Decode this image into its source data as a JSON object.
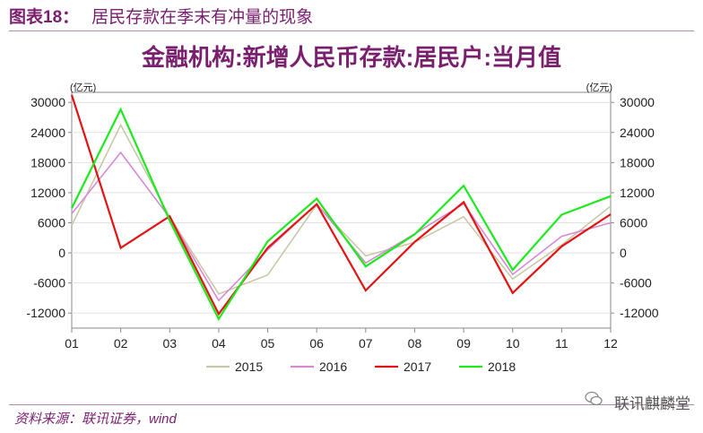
{
  "figure": {
    "label": "图表18：",
    "caption": "居民存款在季末有冲量的现象"
  },
  "source_note": "资料来源：联讯证券，wind",
  "watermark": "联讯麒麟堂",
  "chart_data": {
    "type": "line",
    "title": "金融机构:新增人民币存款:居民户:当月值",
    "unit_left": "(亿元)",
    "unit_right": "(亿元)",
    "categories": [
      "01",
      "02",
      "03",
      "04",
      "05",
      "06",
      "07",
      "08",
      "09",
      "10",
      "11",
      "12"
    ],
    "ylim": [
      -15000,
      32000
    ],
    "yticks": [
      30000,
      24000,
      18000,
      12000,
      6000,
      0,
      -6000,
      -12000
    ],
    "grid": true,
    "legend_position": "bottom",
    "series": [
      {
        "name": "2015",
        "color": "#c8c8a8",
        "values": [
          5500,
          25500,
          7200,
          -8200,
          -4400,
          9600,
          -600,
          2100,
          7200,
          -5200,
          1600,
          9300
        ]
      },
      {
        "name": "2016",
        "color": "#d58ad2",
        "values": [
          7800,
          20000,
          7000,
          -9500,
          600,
          9800,
          -2000,
          3800,
          9800,
          -4300,
          3300,
          6000
        ]
      },
      {
        "name": "2017",
        "color": "#e11414",
        "values": [
          31500,
          1000,
          7300,
          -12200,
          1000,
          9700,
          -7500,
          2200,
          10100,
          -8000,
          1300,
          7700
        ]
      },
      {
        "name": "2018",
        "color": "#1ee81e",
        "values": [
          8900,
          28600,
          6400,
          -13200,
          2300,
          10800,
          -2700,
          3700,
          13400,
          -3400,
          7600,
          11300
        ]
      }
    ]
  }
}
